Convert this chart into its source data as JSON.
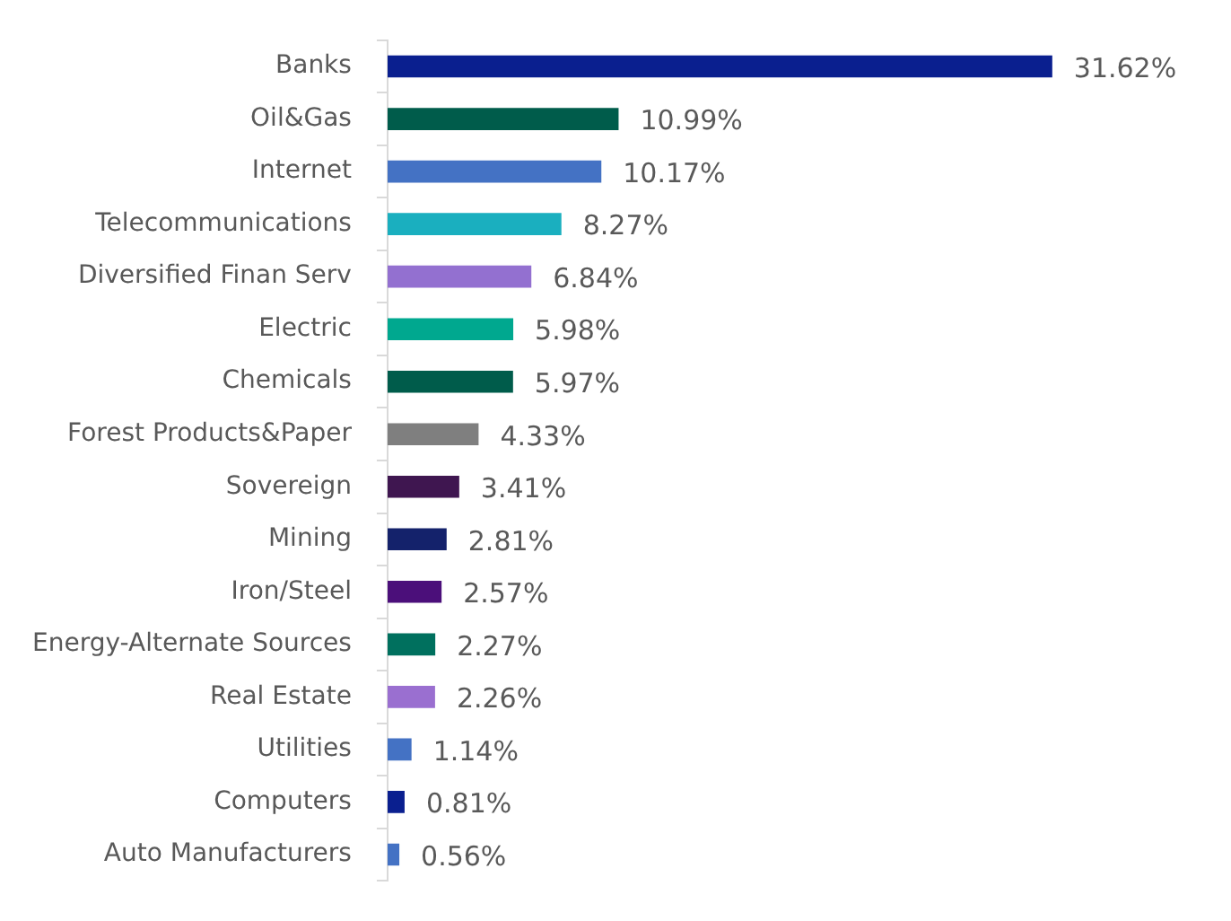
{
  "chart_data": {
    "type": "bar",
    "orientation": "horizontal",
    "categories": [
      "Banks",
      "Oil&Gas",
      "Internet",
      "Telecommunications",
      "Diversified Finan Serv",
      "Electric",
      "Chemicals",
      "Forest Products&Paper",
      "Sovereign",
      "Mining",
      "Iron/Steel",
      "Energy-Alternate Sources",
      "Real Estate",
      "Utilities",
      "Computers",
      "Auto Manufacturers"
    ],
    "values": [
      31.62,
      10.99,
      10.17,
      8.27,
      6.84,
      5.98,
      5.97,
      4.33,
      3.41,
      2.81,
      2.57,
      2.27,
      2.26,
      1.14,
      0.81,
      0.56
    ],
    "colors": [
      "#0a1f8f",
      "#005c4b",
      "#4472c4",
      "#1aafbf",
      "#9370d0",
      "#00a88f",
      "#005c4b",
      "#7f7f7f",
      "#3f1650",
      "#14226b",
      "#4b0f7a",
      "#00705e",
      "#9a6fd0",
      "#4472c4",
      "#0a1f8f",
      "#4472c4"
    ],
    "value_labels": [
      "31.62%",
      "10.99%",
      "10.17%",
      "8.27%",
      "6.84%",
      "5.98%",
      "5.97%",
      "4.33%",
      "3.41%",
      "2.81%",
      "2.57%",
      "2.27%",
      "2.26%",
      "1.14%",
      "0.81%",
      "0.56%"
    ],
    "legend": false,
    "grid": false,
    "tick_labels": "y"
  }
}
